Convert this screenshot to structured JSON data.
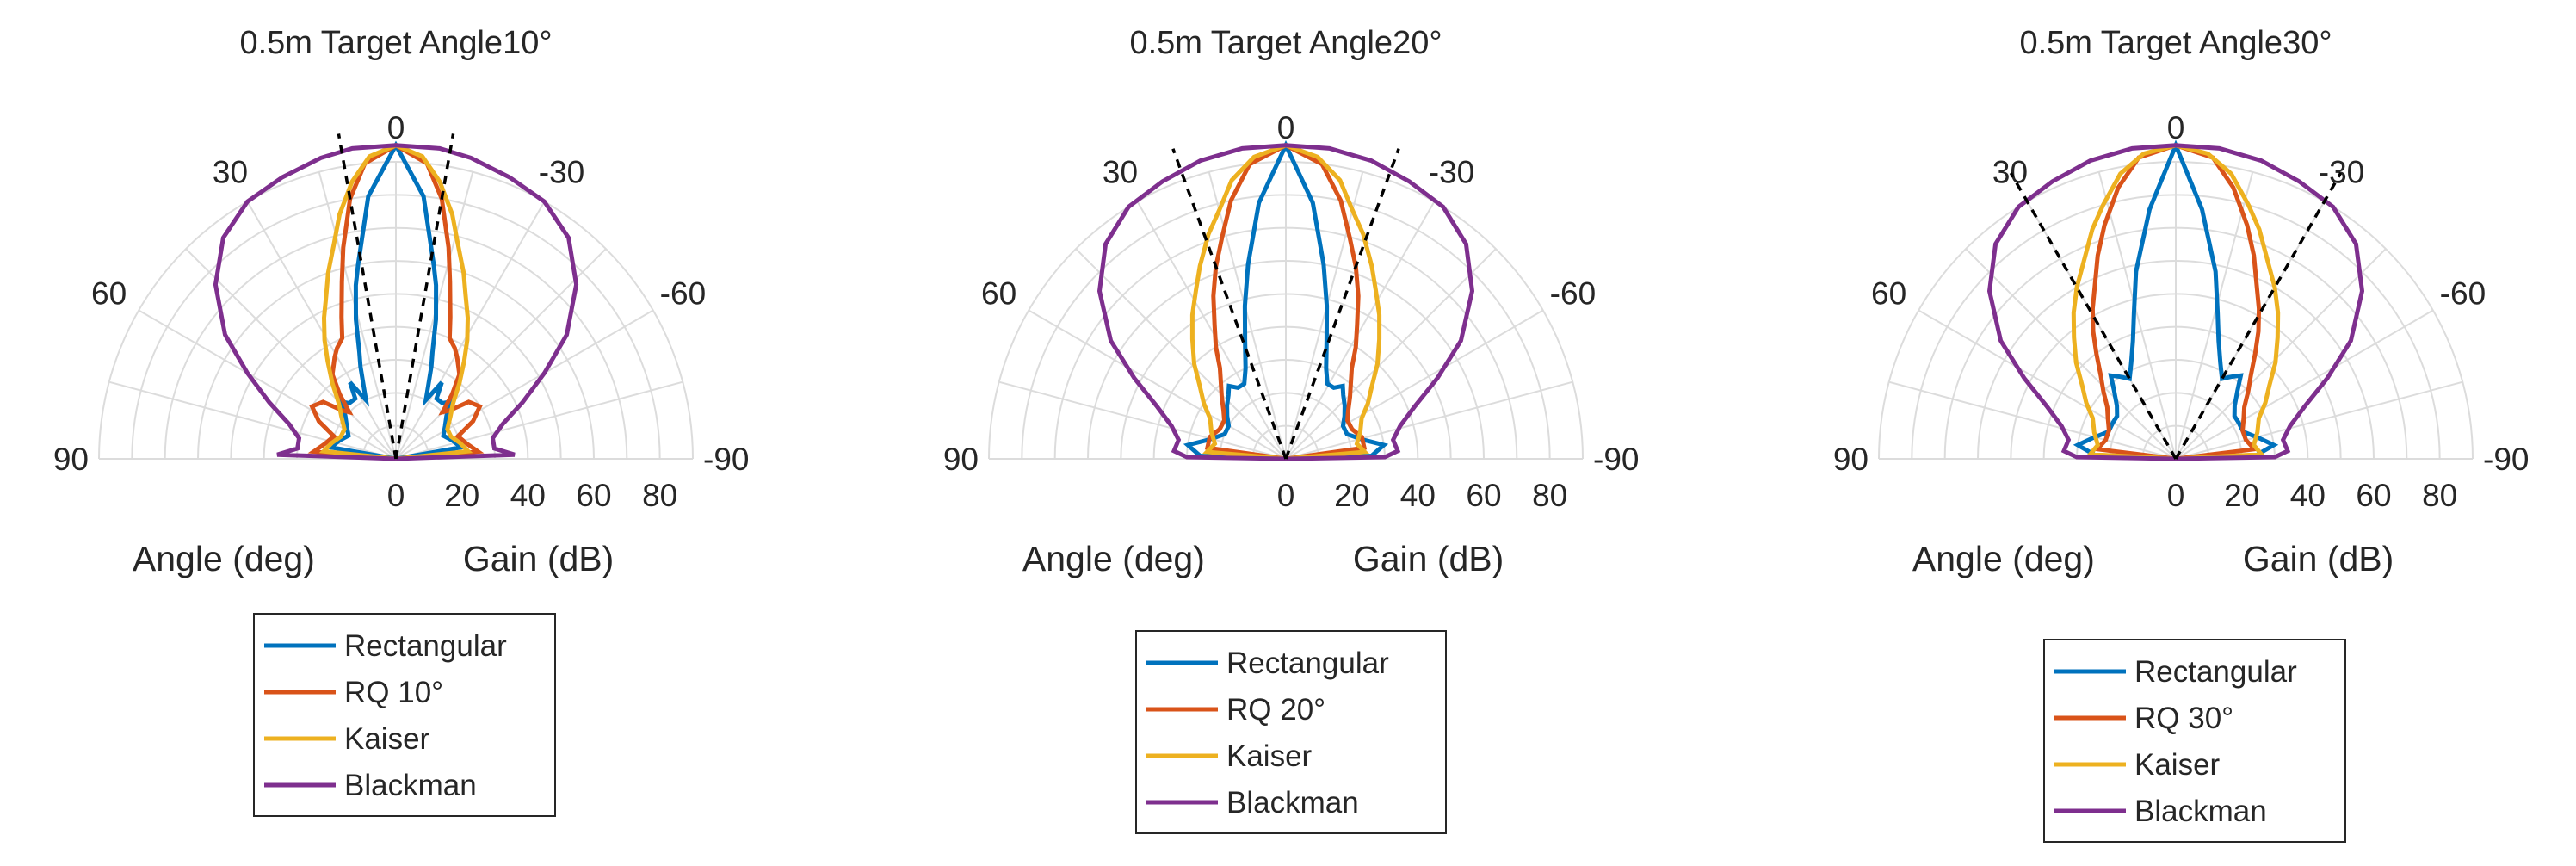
{
  "colors": {
    "Rectangular": "#0072bd",
    "RQ": "#d95319",
    "Kaiser": "#edb120",
    "Blackman": "#7e2f8e",
    "grid": "#dcdcdc",
    "target_lines": "#000000"
  },
  "chart_data": [
    {
      "type": "polar-line",
      "title": "0.5m Target Angle10°",
      "target_angle_deg": 10,
      "theta_range_deg": [
        90,
        -90
      ],
      "theta_ticks": [
        "90",
        "60",
        "30",
        "0",
        "-30",
        "-60",
        "-90"
      ],
      "r_range": [
        0,
        90
      ],
      "r_ticks": [
        "0",
        "20",
        "40",
        "60",
        "80"
      ],
      "xlabel": "Angle (deg)",
      "ylabel": "Gain (dB)",
      "legend_position": "below",
      "grid": true,
      "series": [
        {
          "name": "Rectangular",
          "points": [
            [
              0,
              95
            ],
            [
              6,
              80
            ],
            [
              11,
              60
            ],
            [
              13,
              54
            ],
            [
              16,
              44
            ],
            [
              19,
              34
            ],
            [
              21,
              30
            ],
            [
              24,
              24
            ],
            [
              27,
              20
            ],
            [
              31,
              27
            ],
            [
              34,
              22
            ],
            [
              40,
              22
            ],
            [
              44,
              24
            ],
            [
              50,
              20
            ],
            [
              56,
              18
            ],
            [
              64,
              16
            ],
            [
              72,
              18
            ],
            [
              80,
              20
            ],
            [
              90,
              0
            ]
          ]
        },
        {
          "name": "RQ 10°",
          "points": [
            [
              0,
              95
            ],
            [
              6,
              90
            ],
            [
              10,
              80
            ],
            [
              14,
              66
            ],
            [
              17,
              56
            ],
            [
              21,
              46
            ],
            [
              24,
              40
            ],
            [
              28,
              38
            ],
            [
              31,
              36
            ],
            [
              37,
              32
            ],
            [
              41,
              26
            ],
            [
              45,
              20
            ],
            [
              48,
              22
            ],
            [
              52,
              28
            ],
            [
              58,
              30
            ],
            [
              64,
              26
            ],
            [
              70,
              20
            ],
            [
              78,
              22
            ],
            [
              85,
              25
            ],
            [
              90,
              0
            ]
          ]
        },
        {
          "name": "Kaiser",
          "points": [
            [
              0,
              95
            ],
            [
              5,
              92
            ],
            [
              9,
              85
            ],
            [
              13,
              76
            ],
            [
              16,
              68
            ],
            [
              20,
              60
            ],
            [
              23,
              54
            ],
            [
              27,
              48
            ],
            [
              31,
              42
            ],
            [
              35,
              36
            ],
            [
              40,
              30
            ],
            [
              46,
              24
            ],
            [
              52,
              21
            ],
            [
              60,
              18
            ],
            [
              68,
              18
            ],
            [
              76,
              20
            ],
            [
              84,
              22
            ],
            [
              90,
              0
            ]
          ]
        },
        {
          "name": "Blackman",
          "points": [
            [
              0,
              95
            ],
            [
              8,
              95
            ],
            [
              14,
              94
            ],
            [
              22,
              92
            ],
            [
              30,
              90
            ],
            [
              38,
              85
            ],
            [
              46,
              76
            ],
            [
              54,
              64
            ],
            [
              60,
              52
            ],
            [
              66,
              42
            ],
            [
              72,
              34
            ],
            [
              78,
              30
            ],
            [
              84,
              30
            ],
            [
              88,
              36
            ],
            [
              90,
              0
            ]
          ]
        }
      ]
    },
    {
      "type": "polar-line",
      "title": "0.5m Target Angle20°",
      "target_angle_deg": 20,
      "theta_range_deg": [
        90,
        -90
      ],
      "theta_ticks": [
        "90",
        "60",
        "30",
        "0",
        "-30",
        "-60",
        "-90"
      ],
      "r_range": [
        0,
        90
      ],
      "r_ticks": [
        "0",
        "20",
        "40",
        "60",
        "80"
      ],
      "xlabel": "Angle (deg)",
      "ylabel": "Gain (dB)",
      "legend_position": "below",
      "grid": true,
      "series": [
        {
          "name": "Rectangular",
          "points": [
            [
              0,
              95
            ],
            [
              6,
              78
            ],
            [
              11,
              60
            ],
            [
              15,
              48
            ],
            [
              19,
              38
            ],
            [
              24,
              30
            ],
            [
              29,
              26
            ],
            [
              34,
              26
            ],
            [
              38,
              28
            ],
            [
              42,
              26
            ],
            [
              48,
              24
            ],
            [
              54,
              22
            ],
            [
              60,
              20
            ],
            [
              68,
              20
            ],
            [
              76,
              24
            ],
            [
              82,
              30
            ],
            [
              88,
              26
            ],
            [
              90,
              0
            ]
          ]
        },
        {
          "name": "RQ 20°",
          "points": [
            [
              0,
              95
            ],
            [
              7,
              90
            ],
            [
              12,
              80
            ],
            [
              16,
              70
            ],
            [
              20,
              62
            ],
            [
              24,
              54
            ],
            [
              28,
              46
            ],
            [
              32,
              40
            ],
            [
              36,
              34
            ],
            [
              41,
              30
            ],
            [
              46,
              27
            ],
            [
              52,
              24
            ],
            [
              58,
              22
            ],
            [
              66,
              22
            ],
            [
              74,
              24
            ],
            [
              82,
              24
            ],
            [
              90,
              0
            ]
          ]
        },
        {
          "name": "Kaiser",
          "points": [
            [
              0,
              95
            ],
            [
              6,
              92
            ],
            [
              11,
              86
            ],
            [
              15,
              78
            ],
            [
              19,
              72
            ],
            [
              24,
              64
            ],
            [
              28,
              58
            ],
            [
              33,
              52
            ],
            [
              38,
              46
            ],
            [
              44,
              40
            ],
            [
              50,
              34
            ],
            [
              56,
              30
            ],
            [
              62,
              26
            ],
            [
              70,
              24
            ],
            [
              78,
              22
            ],
            [
              85,
              24
            ],
            [
              90,
              0
            ]
          ]
        },
        {
          "name": "Blackman",
          "points": [
            [
              0,
              95
            ],
            [
              8,
              95
            ],
            [
              16,
              94
            ],
            [
              24,
              92
            ],
            [
              32,
              90
            ],
            [
              40,
              85
            ],
            [
              48,
              76
            ],
            [
              56,
              64
            ],
            [
              62,
              52
            ],
            [
              68,
              42
            ],
            [
              74,
              36
            ],
            [
              80,
              33
            ],
            [
              86,
              34
            ],
            [
              89,
              30
            ],
            [
              90,
              0
            ]
          ]
        }
      ]
    },
    {
      "type": "polar-line",
      "title": "0.5m Target Angle30°",
      "target_angle_deg": 30,
      "theta_range_deg": [
        90,
        -90
      ],
      "theta_ticks": [
        "90",
        "60",
        "30",
        "0",
        "-30",
        "-60",
        "-90"
      ],
      "r_range": [
        0,
        90
      ],
      "r_ticks": [
        "0",
        "20",
        "40",
        "60",
        "80"
      ],
      "xlabel": "Angle (deg)",
      "ylabel": "Gain (dB)",
      "legend_position": "below",
      "grid": true,
      "series": [
        {
          "name": "Rectangular",
          "points": [
            [
              0,
              95
            ],
            [
              6,
              76
            ],
            [
              12,
              58
            ],
            [
              16,
              46
            ],
            [
              20,
              38
            ],
            [
              25,
              32
            ],
            [
              30,
              28
            ],
            [
              34,
              30
            ],
            [
              38,
              32
            ],
            [
              42,
              28
            ],
            [
              48,
              24
            ],
            [
              54,
              22
            ],
            [
              60,
              22
            ],
            [
              68,
              22
            ],
            [
              76,
              26
            ],
            [
              82,
              30
            ],
            [
              88,
              24
            ],
            [
              90,
              0
            ]
          ]
        },
        {
          "name": "RQ 30°",
          "points": [
            [
              0,
              95
            ],
            [
              7,
              92
            ],
            [
              12,
              84
            ],
            [
              17,
              74
            ],
            [
              21,
              66
            ],
            [
              25,
              58
            ],
            [
              29,
              52
            ],
            [
              33,
              46
            ],
            [
              37,
              40
            ],
            [
              42,
              34
            ],
            [
              47,
              30
            ],
            [
              53,
              26
            ],
            [
              59,
              24
            ],
            [
              67,
              22
            ],
            [
              75,
              22
            ],
            [
              83,
              24
            ],
            [
              90,
              0
            ]
          ]
        },
        {
          "name": "Kaiser",
          "points": [
            [
              0,
              95
            ],
            [
              6,
              93
            ],
            [
              11,
              88
            ],
            [
              16,
              80
            ],
            [
              20,
              74
            ],
            [
              25,
              66
            ],
            [
              30,
              60
            ],
            [
              35,
              54
            ],
            [
              40,
              48
            ],
            [
              46,
              42
            ],
            [
              52,
              36
            ],
            [
              58,
              32
            ],
            [
              64,
              28
            ],
            [
              72,
              26
            ],
            [
              80,
              24
            ],
            [
              87,
              26
            ],
            [
              90,
              0
            ]
          ]
        },
        {
          "name": "Blackman",
          "points": [
            [
              0,
              95
            ],
            [
              8,
              95
            ],
            [
              16,
              94
            ],
            [
              24,
              92
            ],
            [
              32,
              90
            ],
            [
              40,
              85
            ],
            [
              48,
              76
            ],
            [
              56,
              64
            ],
            [
              62,
              52
            ],
            [
              68,
              42
            ],
            [
              74,
              36
            ],
            [
              80,
              33
            ],
            [
              86,
              34
            ],
            [
              89,
              30
            ],
            [
              90,
              0
            ]
          ]
        }
      ]
    }
  ]
}
